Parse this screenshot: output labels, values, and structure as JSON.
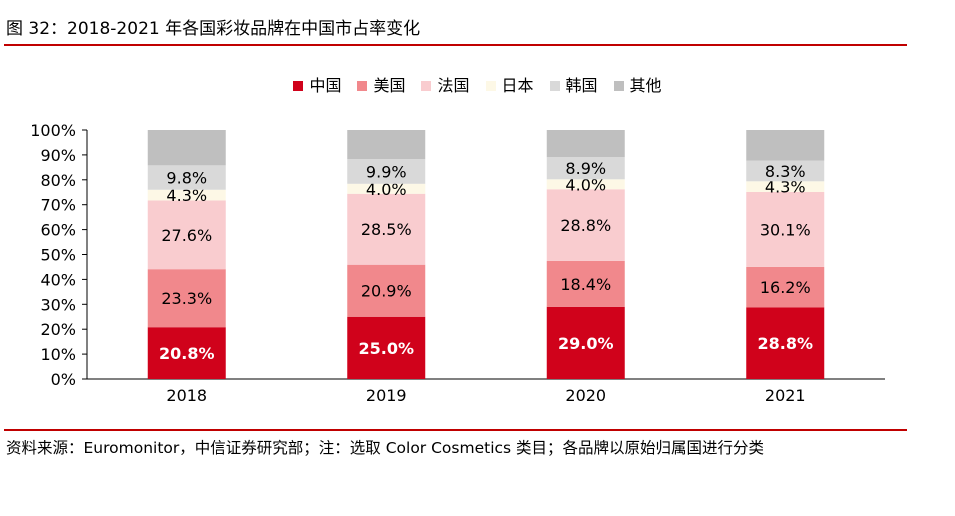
{
  "figure": {
    "title": "图 32：2018-2021 年各国彩妆品牌在中国市占率变化",
    "source": "资料来源：Euromonitor，中信证券研究部；注：选取 Color Cosmetics 类目；各品牌以原始归属国进行分类"
  },
  "chart_data": {
    "type": "bar",
    "stacked": true,
    "title": "2018-2021 年各国彩妆品牌在中国市占率变化",
    "categories": [
      "2018",
      "2019",
      "2020",
      "2021"
    ],
    "series": [
      {
        "name": "中国",
        "color": "#d0021b",
        "values": [
          20.8,
          25.0,
          29.0,
          28.8
        ],
        "labels": [
          "20.8%",
          "25.0%",
          "29.0%",
          "28.8%"
        ]
      },
      {
        "name": "美国",
        "color": "#f1888c",
        "values": [
          23.3,
          20.9,
          18.4,
          16.2
        ],
        "labels": [
          "23.3%",
          "20.9%",
          "18.4%",
          "16.2%"
        ]
      },
      {
        "name": "法国",
        "color": "#f9cccf",
        "values": [
          27.6,
          28.5,
          28.8,
          30.1
        ],
        "labels": [
          "27.6%",
          "28.5%",
          "28.8%",
          "30.1%"
        ]
      },
      {
        "name": "日本",
        "color": "#fdf8e6",
        "values": [
          4.3,
          4.0,
          4.0,
          4.3
        ],
        "labels": [
          "4.3%",
          "4.0%",
          "4.0%",
          "4.3%"
        ]
      },
      {
        "name": "韩国",
        "color": "#d9d9d9",
        "values": [
          9.8,
          9.9,
          8.9,
          8.3
        ],
        "labels": [
          "9.8%",
          "9.9%",
          "8.9%",
          "8.3%"
        ]
      },
      {
        "name": "其他",
        "color": "#bfbfbf",
        "values": [
          14.2,
          11.7,
          10.9,
          12.3
        ],
        "labels": [
          "",
          "",
          "",
          ""
        ]
      }
    ],
    "yticks": [
      "0%",
      "10%",
      "20%",
      "30%",
      "40%",
      "50%",
      "60%",
      "70%",
      "80%",
      "90%",
      "100%"
    ],
    "ylim": [
      0,
      100
    ],
    "legend_position": "top-center",
    "grid": false
  }
}
